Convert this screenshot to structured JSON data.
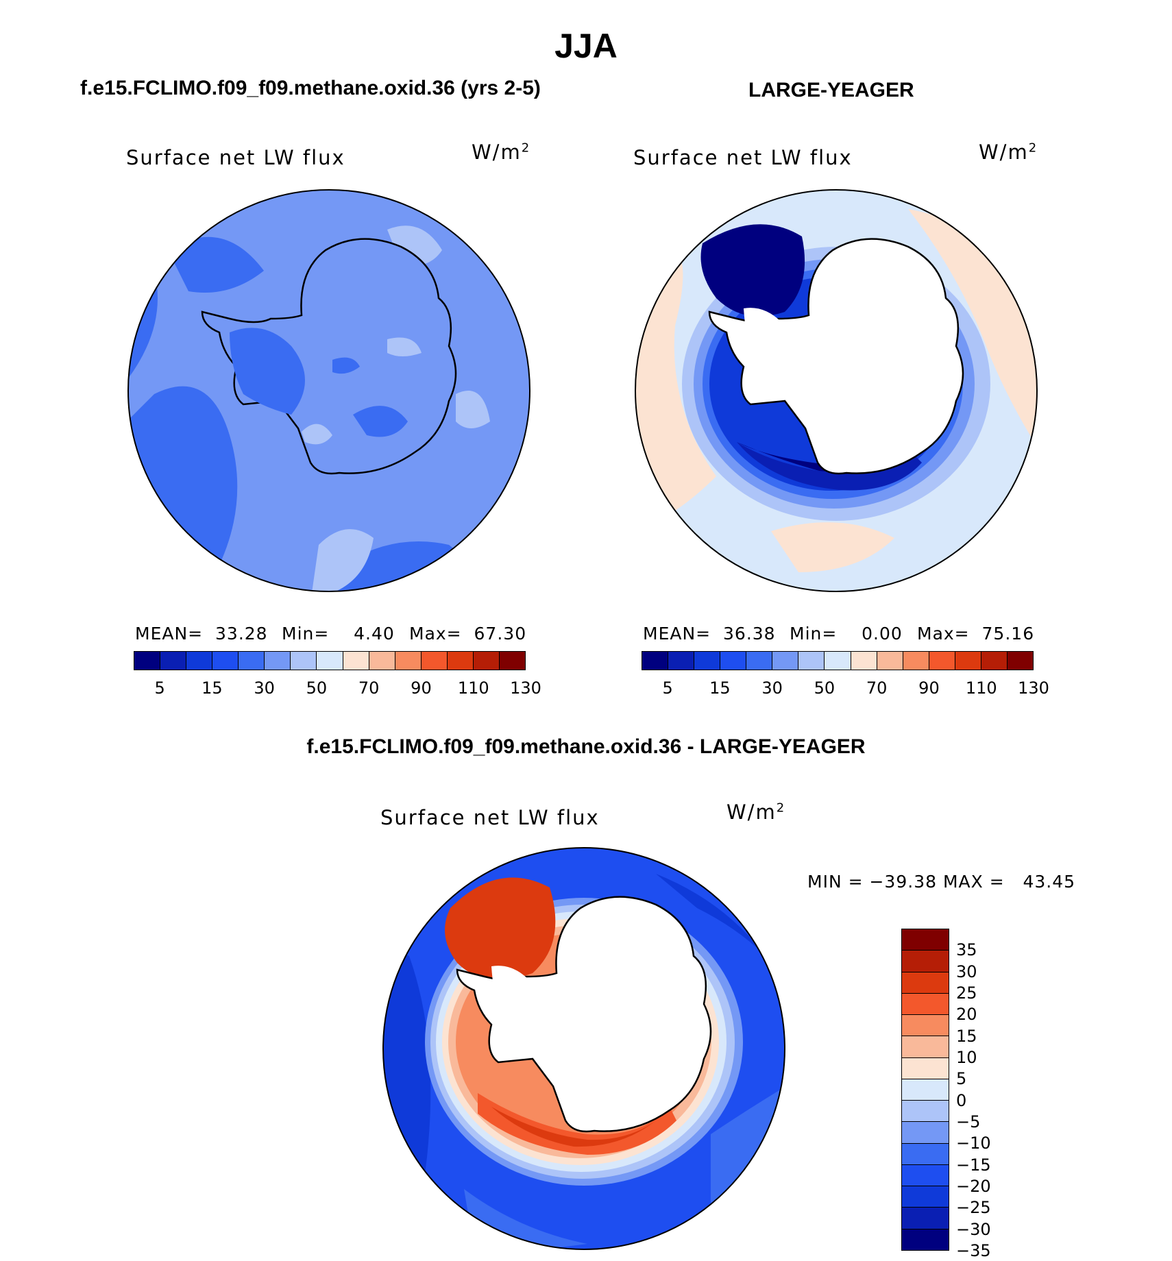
{
  "figure": {
    "title": "JJA",
    "variable": "Surface net LW flux",
    "units": "W/m",
    "units_power": "2"
  },
  "panels": [
    {
      "title": "f.e15.FCLIMO.f09_f09.methane.oxid.36 (yrs 2-5)",
      "mean": "MEAN=  33.28",
      "min": "Min=    4.40",
      "max": "Max=  67.30"
    },
    {
      "title": "LARGE-YEAGER",
      "mean": "MEAN=  36.38",
      "min": "Min=    0.00",
      "max": "Max=  75.16"
    }
  ],
  "diff_panel": {
    "title": "f.e15.FCLIMO.f09_f09.methane.oxid.36 - LARGE-YEAGER",
    "minmax": "MIN = −39.38 MAX =   43.45"
  },
  "colorbar_abs": {
    "colors": [
      "#00007f",
      "#0a1fb3",
      "#0f3ad9",
      "#1e4ef0",
      "#3a6cf2",
      "#7498f5",
      "#adc4f8",
      "#d8e8fb",
      "#fce3d2",
      "#f9b99a",
      "#f78b5f",
      "#f3582c",
      "#dc3a0f",
      "#b51e06",
      "#7f0000"
    ],
    "ticks": [
      "5",
      "15",
      "30",
      "50",
      "70",
      "90",
      "110",
      "130"
    ]
  },
  "colorbar_diff": {
    "colors_top_to_bottom": [
      "#7f0000",
      "#b51e06",
      "#dc3a0f",
      "#f3582c",
      "#f78b5f",
      "#f9b99a",
      "#fce3d2",
      "#d8e8fb",
      "#adc4f8",
      "#7498f5",
      "#3a6cf2",
      "#1e4ef0",
      "#0f3ad9",
      "#0a1fb3",
      "#00007f"
    ],
    "ticks": [
      "35",
      "30",
      "25",
      "20",
      "15",
      "10",
      "5",
      "0",
      "−5",
      "−10",
      "−15",
      "−20",
      "−25",
      "−30",
      "−35"
    ]
  }
}
